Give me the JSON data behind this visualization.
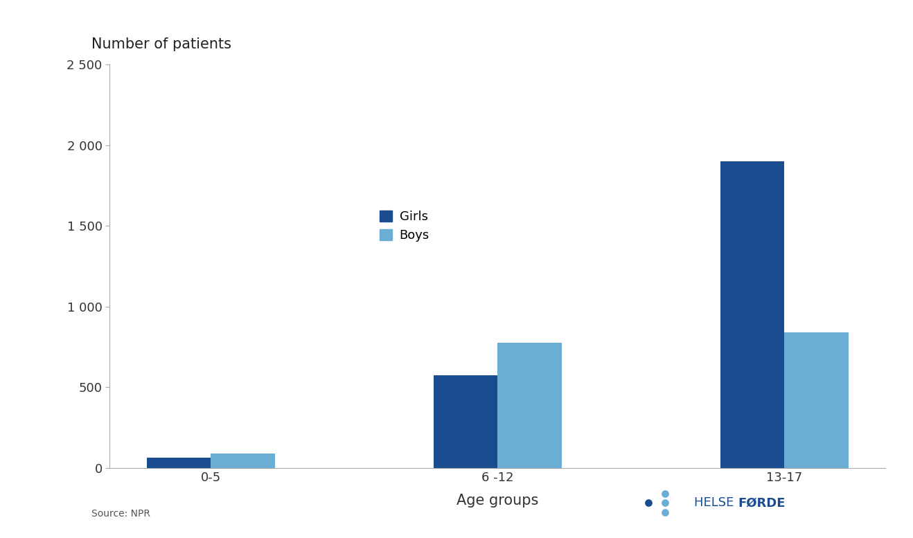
{
  "categories": [
    "0-5",
    "6 -12",
    "13-17"
  ],
  "girls_values": [
    65,
    575,
    1900
  ],
  "boys_values": [
    90,
    775,
    840
  ],
  "girls_color": "#1a4d8f",
  "boys_color": "#6aaed6",
  "title": "Number of patients",
  "xlabel": "Age groups",
  "ylim": [
    0,
    2500
  ],
  "yticks": [
    0,
    500,
    1000,
    1500,
    2000,
    2500
  ],
  "ytick_labels": [
    "0",
    "500",
    "1 000",
    "1 500",
    "2 000",
    "2 500"
  ],
  "legend_labels": [
    "Girls",
    "Boys"
  ],
  "source_text": "Source: NPR",
  "background_color": "#ffffff",
  "bar_width": 0.38,
  "title_fontsize": 15,
  "tick_fontsize": 13,
  "xlabel_fontsize": 15
}
